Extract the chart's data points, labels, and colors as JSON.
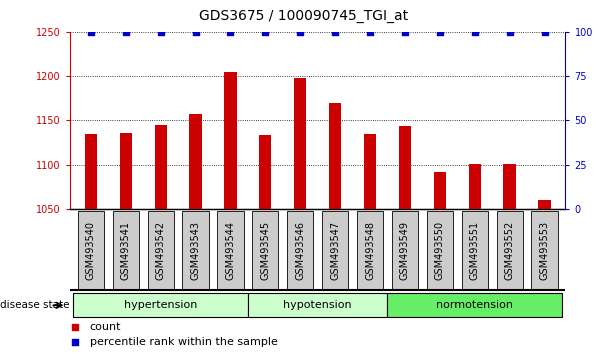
{
  "title": "GDS3675 / 100090745_TGI_at",
  "samples": [
    "GSM493540",
    "GSM493541",
    "GSM493542",
    "GSM493543",
    "GSM493544",
    "GSM493545",
    "GSM493546",
    "GSM493547",
    "GSM493548",
    "GSM493549",
    "GSM493550",
    "GSM493551",
    "GSM493552",
    "GSM493553"
  ],
  "counts": [
    1135,
    1136,
    1145,
    1157,
    1205,
    1133,
    1198,
    1170,
    1135,
    1144,
    1092,
    1101,
    1101,
    1060
  ],
  "percentiles": [
    100,
    100,
    100,
    100,
    100,
    100,
    100,
    100,
    100,
    100,
    100,
    100,
    100,
    100
  ],
  "bar_color": "#cc0000",
  "dot_color": "#0000cc",
  "ylim_left": [
    1050,
    1250
  ],
  "ylim_right": [
    0,
    100
  ],
  "yticks_left": [
    1050,
    1100,
    1150,
    1200,
    1250
  ],
  "yticks_right": [
    0,
    25,
    50,
    75,
    100
  ],
  "group_bounds": [
    {
      "label": "hypertension",
      "start": 0,
      "end": 4,
      "color": "#ccffcc"
    },
    {
      "label": "hypotension",
      "start": 5,
      "end": 8,
      "color": "#ccffcc"
    },
    {
      "label": "normotension",
      "start": 9,
      "end": 13,
      "color": "#66ee66"
    }
  ],
  "disease_state_label": "disease state",
  "legend_count_label": "count",
  "legend_percentile_label": "percentile rank within the sample",
  "bg_color": "#ffffff",
  "tick_bg_color": "#cccccc",
  "title_fontsize": 10,
  "tick_fontsize": 7,
  "group_fontsize": 8,
  "legend_fontsize": 8
}
